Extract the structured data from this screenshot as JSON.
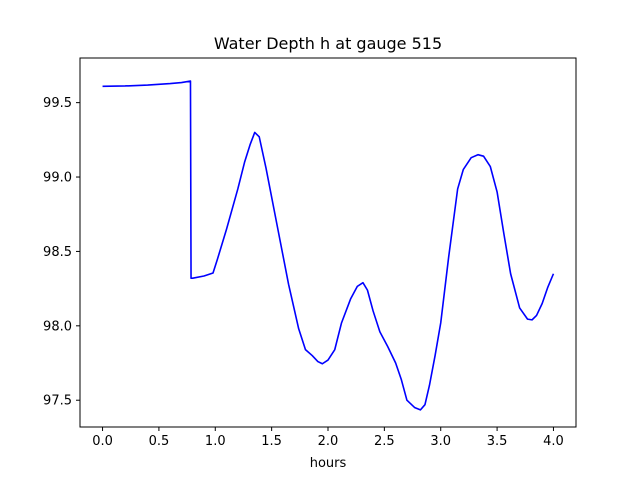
{
  "chart_data": {
    "type": "line",
    "title": "Water Depth h at gauge 515",
    "xlabel": "hours",
    "ylabel": "",
    "xlim": [
      -0.2,
      4.2
    ],
    "ylim": [
      97.32,
      99.8
    ],
    "xticks": [
      0.0,
      0.5,
      1.0,
      1.5,
      2.0,
      2.5,
      3.0,
      3.5,
      4.0
    ],
    "xtick_labels": [
      "0.0",
      "0.5",
      "1.0",
      "1.5",
      "2.0",
      "2.5",
      "3.0",
      "3.5",
      "4.0"
    ],
    "yticks": [
      97.5,
      98.0,
      98.5,
      99.0,
      99.5
    ],
    "ytick_labels": [
      "97.5",
      "98.0",
      "98.5",
      "99.0",
      "99.5"
    ],
    "grid": false,
    "color": "#0000ff",
    "series": [
      {
        "x": [
          0.0,
          0.2,
          0.4,
          0.6,
          0.7,
          0.78,
          0.785,
          0.8,
          0.9,
          0.98,
          1.02,
          1.1,
          1.2,
          1.26,
          1.31,
          1.35,
          1.39,
          1.45,
          1.55,
          1.65,
          1.74,
          1.8,
          1.86,
          1.91,
          1.95,
          2.0,
          2.06,
          2.12,
          2.2,
          2.26,
          2.31,
          2.35,
          2.4,
          2.46,
          2.53,
          2.6,
          2.65,
          2.7,
          2.77,
          2.82,
          2.86,
          2.9,
          2.95,
          3.0,
          3.07,
          3.15,
          3.2,
          3.27,
          3.33,
          3.38,
          3.44,
          3.5,
          3.56,
          3.62,
          3.7,
          3.77,
          3.81,
          3.85,
          3.9,
          3.95,
          4.0
        ],
        "y": [
          99.61,
          99.612,
          99.618,
          99.628,
          99.635,
          99.645,
          98.32,
          98.32,
          98.335,
          98.355,
          98.45,
          98.65,
          98.92,
          99.1,
          99.22,
          99.3,
          99.27,
          99.06,
          98.67,
          98.28,
          97.98,
          97.84,
          97.8,
          97.76,
          97.745,
          97.77,
          97.84,
          98.02,
          98.18,
          98.265,
          98.29,
          98.24,
          98.1,
          97.96,
          97.86,
          97.75,
          97.64,
          97.5,
          97.45,
          97.435,
          97.47,
          97.6,
          97.8,
          98.02,
          98.46,
          98.92,
          99.05,
          99.13,
          99.15,
          99.14,
          99.07,
          98.9,
          98.62,
          98.35,
          98.12,
          98.045,
          98.04,
          98.07,
          98.15,
          98.26,
          98.35
        ]
      }
    ]
  }
}
